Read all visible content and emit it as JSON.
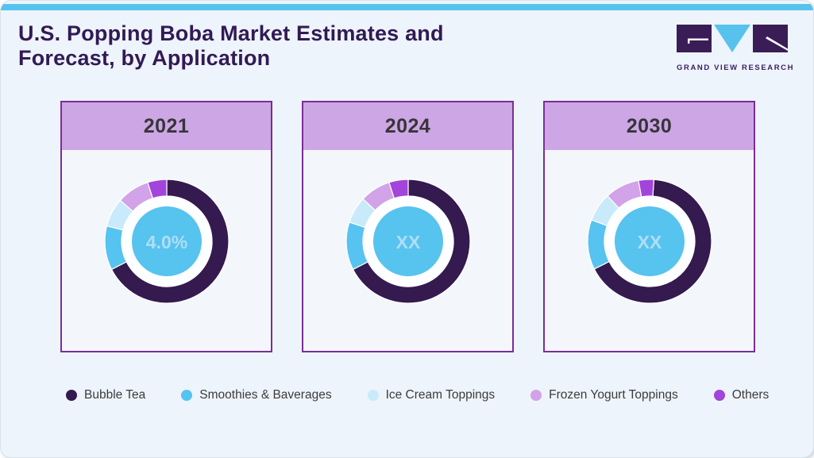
{
  "header": {
    "title_line1": "U.S. Popping Boba Market Estimates and",
    "title_line2": "Forecast, by Application",
    "logo_text": "GRAND VIEW RESEARCH"
  },
  "colors": {
    "accent_bar": "#57c2ee",
    "title_text": "#321a55",
    "panel_border": "#7c2d96",
    "panel_header_bg": "#cda6e6",
    "card_bg": "#edf4fb",
    "panel_body_bg": "#f3f7fc",
    "donut_hole_ring": "#fdfeff",
    "center_circle": "#57c3ef",
    "center_label_text": "#b0def5"
  },
  "chart_data": {
    "type": "pie",
    "title": "U.S. Popping Boba Market Estimates and Forecast, by Application",
    "legend_position": "bottom",
    "categories": [
      "Bubble Tea",
      "Smoothies & Baverages",
      "Ice Cream Toppings",
      "Frozen Yogurt Toppings",
      "Others"
    ],
    "colors": [
      "#341a4f",
      "#56c3f0",
      "#c9eafa",
      "#d2a3e8",
      "#a344db"
    ],
    "charts": [
      {
        "year": "2021",
        "center_label": "4.0%",
        "values": [
          67.5,
          11.5,
          7.5,
          8.5,
          5.0
        ],
        "start_offset_deg": 0
      },
      {
        "year": "2024",
        "center_label": "XX",
        "values": [
          67.5,
          12.5,
          7.0,
          8.0,
          5.0
        ],
        "start_offset_deg": 0
      },
      {
        "year": "2030",
        "center_label": "XX",
        "values": [
          66.5,
          13.0,
          7.5,
          9.0,
          4.0
        ],
        "start_offset_deg": 4
      }
    ]
  }
}
